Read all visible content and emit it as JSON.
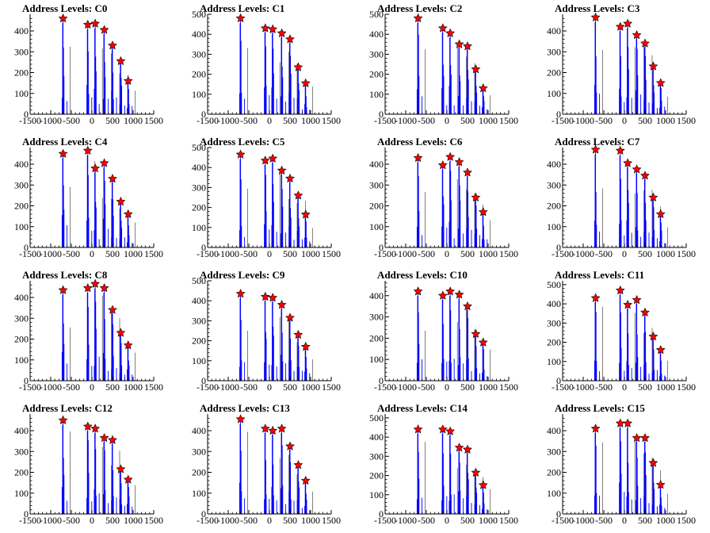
{
  "chart_data": [
    {
      "title": "Address Levels: C0",
      "type": "bar",
      "xlim": [
        -1500,
        1500
      ],
      "ylim": [
        0,
        480
      ],
      "yticks": [
        0,
        100,
        200,
        300,
        400
      ],
      "peaks": [
        {
          "x": -700,
          "y": 460
        },
        {
          "x": -100,
          "y": 430
        },
        {
          "x": 80,
          "y": 435
        },
        {
          "x": 300,
          "y": 405
        },
        {
          "x": 500,
          "y": 330
        },
        {
          "x": 700,
          "y": 255
        },
        {
          "x": 880,
          "y": 160
        }
      ]
    },
    {
      "title": "Address Levels: C1",
      "type": "bar",
      "xlim": [
        -1500,
        1500
      ],
      "ylim": [
        0,
        500
      ],
      "yticks": [
        0,
        100,
        200,
        300,
        400,
        500
      ],
      "peaks": [
        {
          "x": -700,
          "y": 480
        },
        {
          "x": -100,
          "y": 430
        },
        {
          "x": 80,
          "y": 425
        },
        {
          "x": 300,
          "y": 405
        },
        {
          "x": 500,
          "y": 375
        },
        {
          "x": 700,
          "y": 235
        },
        {
          "x": 880,
          "y": 155
        }
      ]
    },
    {
      "title": "Address Levels: C2",
      "type": "bar",
      "xlim": [
        -1500,
        1500
      ],
      "ylim": [
        0,
        500
      ],
      "yticks": [
        0,
        100,
        200,
        300,
        400,
        500
      ],
      "peaks": [
        {
          "x": -700,
          "y": 480
        },
        {
          "x": -100,
          "y": 430
        },
        {
          "x": 80,
          "y": 405
        },
        {
          "x": 300,
          "y": 350
        },
        {
          "x": 500,
          "y": 340
        },
        {
          "x": 700,
          "y": 225
        },
        {
          "x": 880,
          "y": 130
        }
      ]
    },
    {
      "title": "Address Levels: C3",
      "type": "bar",
      "xlim": [
        -1500,
        1500
      ],
      "ylim": [
        0,
        480
      ],
      "yticks": [
        0,
        100,
        200,
        300,
        400
      ],
      "peaks": [
        {
          "x": -700,
          "y": 465
        },
        {
          "x": -100,
          "y": 420
        },
        {
          "x": 80,
          "y": 435
        },
        {
          "x": 300,
          "y": 380
        },
        {
          "x": 500,
          "y": 340
        },
        {
          "x": 700,
          "y": 230
        },
        {
          "x": 880,
          "y": 150
        }
      ]
    },
    {
      "title": "Address Levels: C4",
      "type": "bar",
      "xlim": [
        -1500,
        1500
      ],
      "ylim": [
        0,
        480
      ],
      "yticks": [
        0,
        100,
        200,
        300,
        400
      ],
      "peaks": [
        {
          "x": -700,
          "y": 450
        },
        {
          "x": -100,
          "y": 465
        },
        {
          "x": 80,
          "y": 380
        },
        {
          "x": 300,
          "y": 405
        },
        {
          "x": 500,
          "y": 330
        },
        {
          "x": 700,
          "y": 220
        },
        {
          "x": 880,
          "y": 160
        }
      ]
    },
    {
      "title": "Address Levels: C5",
      "type": "bar",
      "xlim": [
        -1500,
        1500
      ],
      "ylim": [
        0,
        500
      ],
      "yticks": [
        0,
        100,
        200,
        300,
        400,
        500
      ],
      "peaks": [
        {
          "x": -700,
          "y": 465
        },
        {
          "x": -100,
          "y": 435
        },
        {
          "x": 80,
          "y": 445
        },
        {
          "x": 300,
          "y": 385
        },
        {
          "x": 500,
          "y": 345
        },
        {
          "x": 700,
          "y": 260
        },
        {
          "x": 880,
          "y": 165
        }
      ]
    },
    {
      "title": "Address Levels: C6",
      "type": "bar",
      "xlim": [
        -1500,
        1500
      ],
      "ylim": [
        0,
        480
      ],
      "yticks": [
        0,
        100,
        200,
        300,
        400
      ],
      "peaks": [
        {
          "x": -700,
          "y": 430
        },
        {
          "x": -100,
          "y": 395
        },
        {
          "x": 80,
          "y": 435
        },
        {
          "x": 300,
          "y": 410
        },
        {
          "x": 500,
          "y": 360
        },
        {
          "x": 700,
          "y": 240
        },
        {
          "x": 880,
          "y": 170
        }
      ]
    },
    {
      "title": "Address Levels: C7",
      "type": "bar",
      "xlim": [
        -1500,
        1500
      ],
      "ylim": [
        0,
        480
      ],
      "yticks": [
        0,
        100,
        200,
        300,
        400
      ],
      "peaks": [
        {
          "x": -700,
          "y": 470
        },
        {
          "x": -100,
          "y": 465
        },
        {
          "x": 80,
          "y": 405
        },
        {
          "x": 300,
          "y": 375
        },
        {
          "x": 500,
          "y": 345
        },
        {
          "x": 700,
          "y": 240
        },
        {
          "x": 880,
          "y": 160
        }
      ]
    },
    {
      "title": "Address Levels: C8",
      "type": "bar",
      "xlim": [
        -1500,
        1500
      ],
      "ylim": [
        0,
        480
      ],
      "yticks": [
        0,
        100,
        200,
        300,
        400
      ],
      "peaks": [
        {
          "x": -700,
          "y": 435
        },
        {
          "x": -100,
          "y": 445
        },
        {
          "x": 80,
          "y": 465
        },
        {
          "x": 300,
          "y": 445
        },
        {
          "x": 500,
          "y": 340
        },
        {
          "x": 700,
          "y": 230
        },
        {
          "x": 880,
          "y": 170
        }
      ]
    },
    {
      "title": "Address Levels: C9",
      "type": "bar",
      "xlim": [
        -1500,
        1500
      ],
      "ylim": [
        0,
        500
      ],
      "yticks": [
        0,
        100,
        200,
        300,
        400,
        500
      ],
      "peaks": [
        {
          "x": -700,
          "y": 435
        },
        {
          "x": -100,
          "y": 420
        },
        {
          "x": 80,
          "y": 415
        },
        {
          "x": 300,
          "y": 380
        },
        {
          "x": 500,
          "y": 315
        },
        {
          "x": 700,
          "y": 230
        },
        {
          "x": 880,
          "y": 170
        }
      ]
    },
    {
      "title": "Address Levels: C10",
      "type": "bar",
      "xlim": [
        -1500,
        1500
      ],
      "ylim": [
        0,
        470
      ],
      "yticks": [
        0,
        100,
        200,
        300,
        400
      ],
      "peaks": [
        {
          "x": -700,
          "y": 420
        },
        {
          "x": -100,
          "y": 400
        },
        {
          "x": 80,
          "y": 420
        },
        {
          "x": 300,
          "y": 405
        },
        {
          "x": 500,
          "y": 350
        },
        {
          "x": 700,
          "y": 220
        },
        {
          "x": 880,
          "y": 180
        }
      ]
    },
    {
      "title": "Address Levels: C11",
      "type": "bar",
      "xlim": [
        -1500,
        1500
      ],
      "ylim": [
        0,
        520
      ],
      "yticks": [
        0,
        100,
        200,
        300,
        400,
        500
      ],
      "peaks": [
        {
          "x": -700,
          "y": 430
        },
        {
          "x": -100,
          "y": 470
        },
        {
          "x": 80,
          "y": 395
        },
        {
          "x": 300,
          "y": 420
        },
        {
          "x": 500,
          "y": 355
        },
        {
          "x": 700,
          "y": 230
        },
        {
          "x": 880,
          "y": 160
        }
      ]
    },
    {
      "title": "Address Levels: C12",
      "type": "bar",
      "xlim": [
        -1500,
        1500
      ],
      "ylim": [
        0,
        480
      ],
      "yticks": [
        0,
        100,
        200,
        300,
        400
      ],
      "peaks": [
        {
          "x": -700,
          "y": 450
        },
        {
          "x": -100,
          "y": 420
        },
        {
          "x": 80,
          "y": 410
        },
        {
          "x": 300,
          "y": 365
        },
        {
          "x": 500,
          "y": 355
        },
        {
          "x": 700,
          "y": 215
        },
        {
          "x": 880,
          "y": 165
        }
      ]
    },
    {
      "title": "Address Levels: C13",
      "type": "bar",
      "xlim": [
        -1500,
        1500
      ],
      "ylim": [
        0,
        480
      ],
      "yticks": [
        0,
        100,
        200,
        300,
        400
      ],
      "peaks": [
        {
          "x": -700,
          "y": 455
        },
        {
          "x": -100,
          "y": 410
        },
        {
          "x": 80,
          "y": 400
        },
        {
          "x": 300,
          "y": 410
        },
        {
          "x": 500,
          "y": 325
        },
        {
          "x": 700,
          "y": 235
        },
        {
          "x": 880,
          "y": 160
        }
      ]
    },
    {
      "title": "Address Levels: C14",
      "type": "bar",
      "xlim": [
        -1500,
        1500
      ],
      "ylim": [
        0,
        520
      ],
      "yticks": [
        0,
        100,
        200,
        300,
        400,
        500
      ],
      "peaks": [
        {
          "x": -700,
          "y": 440
        },
        {
          "x": -100,
          "y": 440
        },
        {
          "x": 80,
          "y": 430
        },
        {
          "x": 300,
          "y": 345
        },
        {
          "x": 500,
          "y": 335
        },
        {
          "x": 700,
          "y": 215
        },
        {
          "x": 880,
          "y": 150
        }
      ]
    },
    {
      "title": "Address Levels: C15",
      "type": "bar",
      "xlim": [
        -1500,
        1500
      ],
      "ylim": [
        0,
        480
      ],
      "yticks": [
        0,
        100,
        200,
        300,
        400
      ],
      "peaks": [
        {
          "x": -700,
          "y": 410
        },
        {
          "x": -100,
          "y": 435
        },
        {
          "x": 80,
          "y": 435
        },
        {
          "x": 300,
          "y": 365
        },
        {
          "x": 500,
          "y": 365
        },
        {
          "x": 700,
          "y": 245
        },
        {
          "x": 880,
          "y": 140
        }
      ]
    }
  ],
  "xticks": [
    -1500,
    -1000,
    -500,
    0,
    500,
    1000,
    1500
  ],
  "colors": {
    "histogram": "#0000ff",
    "peak_marker": "#ff0000",
    "axis": "#000000"
  }
}
